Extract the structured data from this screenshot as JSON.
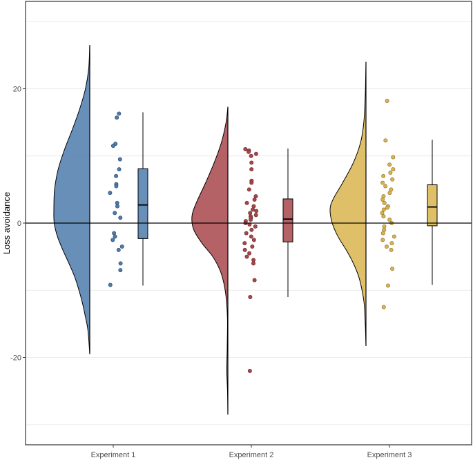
{
  "chart_data": {
    "type": "raincloud",
    "title": "",
    "xlabel": "",
    "ylabel": "Loss avoidance",
    "ylim": [
      -33,
      33
    ],
    "yticks": [
      -20,
      0,
      20
    ],
    "ytick_labels": [
      "-20",
      "0",
      "20"
    ],
    "grid_y": [
      -30,
      -20,
      -10,
      0,
      10,
      20,
      30
    ],
    "reference_line_y": 0,
    "categories": [
      "Experiment 1",
      "Experiment 2",
      "Experiment 3"
    ],
    "series": [
      {
        "name": "Experiment 1",
        "color": "#4E7BAB",
        "density_range": [
          -19.5,
          26.5
        ],
        "density_profile": [
          [
            26.5,
            0.0
          ],
          [
            23.0,
            0.03
          ],
          [
            20.0,
            0.12
          ],
          [
            17.0,
            0.28
          ],
          [
            14.0,
            0.48
          ],
          [
            11.0,
            0.7
          ],
          [
            8.0,
            0.88
          ],
          [
            5.0,
            0.98
          ],
          [
            2.0,
            1.0
          ],
          [
            0.0,
            0.99
          ],
          [
            -2.0,
            0.9
          ],
          [
            -4.0,
            0.75
          ],
          [
            -6.0,
            0.58
          ],
          [
            -8.0,
            0.42
          ],
          [
            -10.0,
            0.3
          ],
          [
            -12.0,
            0.2
          ],
          [
            -14.0,
            0.12
          ],
          [
            -16.0,
            0.05
          ],
          [
            -19.5,
            0.0
          ]
        ],
        "points": [
          16.3,
          15.7,
          11.8,
          11.5,
          9.5,
          8.0,
          7.0,
          5.8,
          5.5,
          4.5,
          3.0,
          2.5,
          1.5,
          0.8,
          -1.5,
          -2.0,
          -2.5,
          -3.5,
          -4.0,
          -6.0,
          -7.0,
          -9.2
        ],
        "box": {
          "whisker_low": -9.3,
          "q1": -2.3,
          "median": 2.7,
          "q3": 8.1,
          "whisker_high": 16.5
        }
      },
      {
        "name": "Experiment 2",
        "color": "#A7474B",
        "density_range": [
          -28.5,
          17.3
        ],
        "density_profile": [
          [
            17.3,
            0.0
          ],
          [
            15.0,
            0.05
          ],
          [
            12.0,
            0.18
          ],
          [
            9.0,
            0.38
          ],
          [
            6.0,
            0.62
          ],
          [
            3.0,
            0.88
          ],
          [
            1.0,
            1.0
          ],
          [
            -1.0,
            0.95
          ],
          [
            -3.0,
            0.72
          ],
          [
            -5.0,
            0.42
          ],
          [
            -7.0,
            0.22
          ],
          [
            -9.0,
            0.11
          ],
          [
            -11.0,
            0.05
          ],
          [
            -13.0,
            0.02
          ],
          [
            -15.0,
            0.01
          ],
          [
            -19.0,
            0.02
          ],
          [
            -22.0,
            0.03
          ],
          [
            -25.0,
            0.01
          ],
          [
            -28.5,
            0.0
          ]
        ],
        "points": [
          11.0,
          10.8,
          10.6,
          10.3,
          10.0,
          9.0,
          8.0,
          6.3,
          6.0,
          5.0,
          4.0,
          3.5,
          3.0,
          2.5,
          2.0,
          1.8,
          1.5,
          1.2,
          1.0,
          0.8,
          0.5,
          0.3,
          0.0,
          -0.2,
          -0.5,
          -1.0,
          -1.5,
          -2.0,
          -2.5,
          -3.0,
          -3.5,
          -4.0,
          -4.5,
          -5.0,
          -5.5,
          -6.0,
          -8.5,
          -11.0,
          -22.0
        ],
        "box": {
          "whisker_low": -11.0,
          "q1": -2.8,
          "median": 0.6,
          "q3": 3.6,
          "whisker_high": 11.1
        }
      },
      {
        "name": "Experiment 3",
        "color": "#D9B54E",
        "density_range": [
          -18.3,
          24.0
        ],
        "density_profile": [
          [
            24.0,
            0.0
          ],
          [
            19.0,
            0.02
          ],
          [
            15.0,
            0.06
          ],
          [
            12.0,
            0.15
          ],
          [
            9.0,
            0.35
          ],
          [
            6.0,
            0.65
          ],
          [
            3.5,
            0.92
          ],
          [
            2.0,
            1.0
          ],
          [
            0.0,
            0.94
          ],
          [
            -2.0,
            0.78
          ],
          [
            -4.0,
            0.55
          ],
          [
            -6.0,
            0.35
          ],
          [
            -8.0,
            0.2
          ],
          [
            -10.0,
            0.11
          ],
          [
            -12.0,
            0.05
          ],
          [
            -15.0,
            0.02
          ],
          [
            -18.3,
            0.0
          ]
        ],
        "points": [
          18.2,
          12.3,
          9.8,
          8.7,
          8.0,
          7.5,
          7.0,
          6.5,
          6.0,
          5.5,
          5.0,
          4.5,
          4.0,
          3.5,
          3.0,
          2.5,
          2.3,
          2.0,
          1.5,
          1.0,
          0.5,
          0.0,
          -0.5,
          -1.0,
          -1.5,
          -2.0,
          -2.5,
          -3.0,
          -3.5,
          -4.0,
          -6.8,
          -9.3,
          -12.5
        ],
        "box": {
          "whisker_low": -9.2,
          "q1": -0.4,
          "median": 2.4,
          "q3": 5.7,
          "whisker_high": 12.4
        }
      }
    ]
  }
}
